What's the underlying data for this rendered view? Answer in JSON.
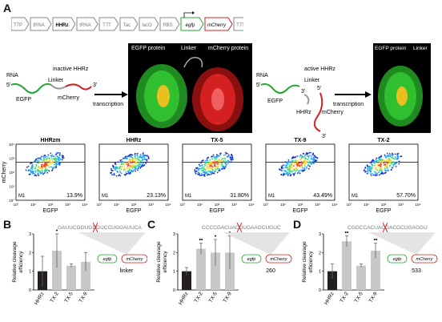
{
  "panels": {
    "A": "A",
    "B": "B",
    "C": "C",
    "D": "D"
  },
  "construct": {
    "elements": [
      "T7P",
      "tRNA",
      "HHRz",
      "tRNA",
      "T7T",
      "Tac",
      "lacO",
      "RBS",
      "egfp",
      "mCherry",
      "T7T"
    ]
  },
  "left_scheme": {
    "rna": "RNA",
    "five": "5'",
    "three": "3'",
    "inactive": "inactive HHRz",
    "linker": "Linker",
    "egfp": "EGFP",
    "mcherry": "mCherry",
    "transcription": "transcription"
  },
  "left_structure": {
    "egfp": "EGFP protein",
    "linker": "Linker",
    "mcherry": "mCherry protein"
  },
  "right_scheme": {
    "rna": "RNA",
    "five": "5'",
    "three_a": "3'",
    "five_b": "5'",
    "three_b": "3'",
    "active": "active HHRz",
    "linker": "Linker",
    "egfp": "EGFP",
    "hhrz": "HHRz",
    "mcherry": "mCherry",
    "transcription": "transcription"
  },
  "right_structure": {
    "egfp": "EGFP protein",
    "linker": "Linker"
  },
  "flow": {
    "ylabel": "mCherry",
    "xlabel": "EGFP",
    "gate": "M1",
    "plots": [
      {
        "title": "HHRzm",
        "pct": "13.9%"
      },
      {
        "title": "HHRz",
        "pct": "23.13%"
      },
      {
        "title": "TX-5",
        "pct": "31.80%"
      },
      {
        "title": "TX-9",
        "pct": "43.49%"
      },
      {
        "title": "TX-2",
        "pct": "57.70%"
      }
    ],
    "xticks": [
      "10°",
      "10¹",
      "10²",
      "10³",
      "10⁴"
    ],
    "yticks": [
      "10°",
      "10¹",
      "10²",
      "10³",
      "10⁴"
    ]
  },
  "chart_data": [
    {
      "type": "bar",
      "panel": "B",
      "categories": [
        "HHRz",
        "TX-2",
        "TX-5",
        "TX-9"
      ],
      "values": [
        1.0,
        2.1,
        1.3,
        1.5
      ],
      "errors": [
        0.8,
        0.9,
        0.1,
        0.5
      ],
      "stars": [
        "",
        "•",
        "",
        ""
      ],
      "ylabel": "Relative cleavage efficiency",
      "ylim": [
        0,
        3
      ],
      "yticks": [
        "0",
        "1",
        "2",
        "3"
      ],
      "colors": [
        "#231f20",
        "#c8c8c8",
        "#c8c8c8",
        "#c8c8c8"
      ]
    },
    {
      "type": "bar",
      "panel": "C",
      "categories": [
        "HHRz",
        "TX-2",
        "TX-5",
        "TX-9"
      ],
      "values": [
        1.0,
        2.2,
        2.0,
        2.0
      ],
      "errors": [
        0.2,
        0.3,
        0.7,
        0.9
      ],
      "stars": [
        "",
        "••",
        "•",
        "•"
      ],
      "ylabel": "Relative cleavage efficiency",
      "ylim": [
        0,
        3
      ],
      "yticks": [
        "0",
        "1",
        "2",
        "3"
      ],
      "colors": [
        "#231f20",
        "#c8c8c8",
        "#c8c8c8",
        "#c8c8c8"
      ]
    },
    {
      "type": "bar",
      "panel": "D",
      "categories": [
        "HHRz",
        "TX-2",
        "TX-5",
        "TX-9"
      ],
      "values": [
        1.0,
        2.6,
        1.3,
        2.1
      ],
      "errors": [
        0.4,
        0.3,
        0.1,
        0.4
      ],
      "stars": [
        "",
        "••",
        "",
        "••"
      ],
      "ylabel": "Relative cleavage efficiency",
      "ylim": [
        0,
        3
      ],
      "yticks": [
        "0",
        "1",
        "2",
        "3"
      ],
      "colors": [
        "#231f20",
        "#c8c8c8",
        "#c8c8c8",
        "#c8c8c8"
      ]
    }
  ],
  "insets": [
    {
      "seq": "GAUUCGGUGCGUCCUGGAUUCA",
      "egfp": "egfp",
      "mcherry": "mCherry",
      "label": "linker"
    },
    {
      "seq": "CCCCGACUACUUGAAGCUGUC",
      "egfp": "egfp",
      "mcherry": "mCherry",
      "label": "260"
    },
    {
      "seq": "CGGCCACUACGACGCUGAGGU",
      "egfp": "egfp",
      "mcherry": "mCherry",
      "label": "533"
    }
  ],
  "colors": {
    "egfp_green": "#22a832",
    "mcherry_red": "#d42020",
    "bar_dark": "#231f20",
    "bar_light": "#c8c8c8"
  }
}
